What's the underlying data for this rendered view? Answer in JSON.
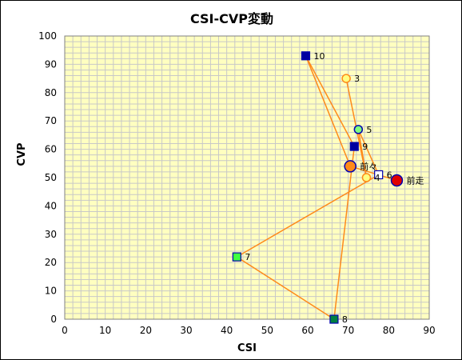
{
  "chart_data": {
    "type": "scatter",
    "title": "CSI-CVP変動",
    "xlabel": "CSI",
    "ylabel": "CVP",
    "xlim": [
      0,
      90
    ],
    "ylim": [
      0,
      100
    ],
    "xticks": [
      "0",
      "10",
      "20",
      "30",
      "40",
      "50",
      "60",
      "70",
      "80",
      "90"
    ],
    "yticks": [
      "0",
      "10",
      "20",
      "30",
      "40",
      "50",
      "60",
      "70",
      "80",
      "90",
      "100"
    ],
    "grid": true,
    "plot_background": "#ffffc0",
    "gridline_color": "#c8c8c8",
    "line_color": "#ff8a1a",
    "line_order": [
      "3",
      "4",
      "5",
      "6",
      "7",
      "8",
      "9",
      "10",
      "前々",
      "前走"
    ],
    "points": [
      {
        "label": "前走",
        "x": 82,
        "y": 49,
        "marker": "circle-large",
        "fill": "#e00000",
        "stroke": "#0000b0"
      },
      {
        "label": "前々",
        "x": 70.5,
        "y": 54,
        "marker": "circle-large",
        "fill": "#ff8a1a",
        "stroke": "#0000b0"
      },
      {
        "label": "3",
        "x": 69.5,
        "y": 85,
        "marker": "circle",
        "fill": "#ffff80",
        "stroke": "#ff8a1a"
      },
      {
        "label": "4",
        "x": 74.5,
        "y": 50,
        "marker": "circle",
        "fill": "#ffff80",
        "stroke": "#ff8a1a"
      },
      {
        "label": "5",
        "x": 72.5,
        "y": 67,
        "marker": "circle",
        "fill": "#80ff80",
        "stroke": "#0000b0"
      },
      {
        "label": "6",
        "x": 77.5,
        "y": 51,
        "marker": "square",
        "fill": "#ffffff",
        "stroke": "#0000b0"
      },
      {
        "label": "7",
        "x": 42.5,
        "y": 22,
        "marker": "square",
        "fill": "#40ff40",
        "stroke": "#0000b0"
      },
      {
        "label": "8",
        "x": 66.5,
        "y": 0,
        "marker": "square",
        "fill": "#008040",
        "stroke": "#0000b0"
      },
      {
        "label": "9",
        "x": 71.5,
        "y": 61,
        "marker": "square",
        "fill": "#0000a0",
        "stroke": "#0000b0"
      },
      {
        "label": "10",
        "x": 59.5,
        "y": 93,
        "marker": "square",
        "fill": "#0000a0",
        "stroke": "#0000b0"
      }
    ]
  }
}
